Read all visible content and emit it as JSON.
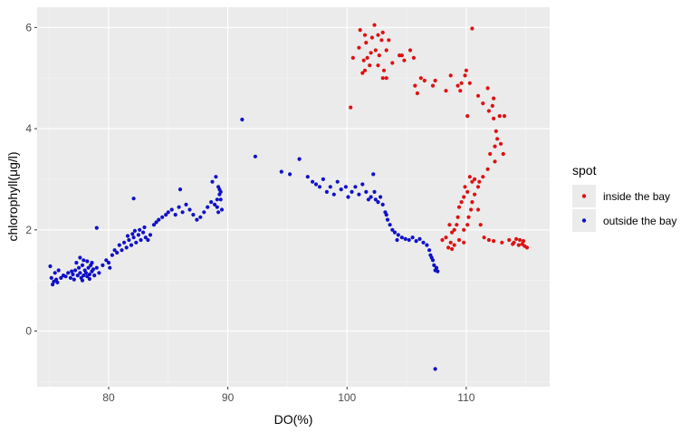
{
  "chart_data": {
    "type": "scatter",
    "xlabel": "DO(%)",
    "ylabel": "chlorophyll(μg/l)",
    "xlim": [
      74,
      117
    ],
    "ylim": [
      -1.1,
      6.4
    ],
    "x_ticks": [
      80,
      90,
      100,
      110
    ],
    "y_ticks": [
      0,
      2,
      4,
      6
    ],
    "grid": true,
    "legend": {
      "title": "spot",
      "placement": "right"
    },
    "colors": {
      "panel": "#ebebeb",
      "grid_major": "#ffffff",
      "grid_minor": "#f5f5f5",
      "inside": "#dd1111",
      "outside": "#1010c8"
    },
    "series": [
      {
        "name": "inside the bay",
        "color": "#dd1111",
        "points": [
          [
            101.1,
            5.95
          ],
          [
            101.5,
            5.85
          ],
          [
            102.3,
            6.05
          ],
          [
            101.6,
            5.7
          ],
          [
            102.1,
            5.8
          ],
          [
            102.6,
            5.85
          ],
          [
            102.9,
            5.75
          ],
          [
            103.0,
            5.9
          ],
          [
            103.5,
            5.75
          ],
          [
            102.4,
            5.55
          ],
          [
            102.0,
            5.5
          ],
          [
            101.7,
            5.4
          ],
          [
            102.7,
            5.45
          ],
          [
            103.3,
            5.55
          ],
          [
            101.4,
            5.35
          ],
          [
            101.9,
            5.25
          ],
          [
            101.5,
            5.15
          ],
          [
            101.3,
            5.1
          ],
          [
            102.6,
            5.25
          ],
          [
            103.1,
            5.15
          ],
          [
            103.0,
            5.0
          ],
          [
            103.3,
            5.0
          ],
          [
            104.4,
            5.45
          ],
          [
            104.8,
            5.35
          ],
          [
            105.3,
            5.55
          ],
          [
            105.6,
            5.4
          ],
          [
            104.6,
            5.45
          ],
          [
            100.5,
            5.4
          ],
          [
            100.3,
            4.42
          ],
          [
            105.7,
            4.85
          ],
          [
            105.9,
            4.7
          ],
          [
            106.2,
            5.0
          ],
          [
            106.5,
            4.95
          ],
          [
            107.4,
            4.95
          ],
          [
            107.2,
            4.85
          ],
          [
            108.7,
            5.05
          ],
          [
            108.3,
            4.75
          ],
          [
            109.3,
            4.85
          ],
          [
            109.6,
            4.9
          ],
          [
            109.5,
            4.75
          ],
          [
            109.9,
            5.05
          ],
          [
            110.0,
            5.15
          ],
          [
            110.3,
            4.9
          ],
          [
            110.5,
            5.98
          ],
          [
            111.0,
            4.65
          ],
          [
            111.4,
            4.5
          ],
          [
            111.8,
            4.8
          ],
          [
            112.3,
            4.6
          ],
          [
            112.2,
            4.45
          ],
          [
            111.9,
            4.35
          ],
          [
            112.3,
            4.2
          ],
          [
            112.8,
            4.25
          ],
          [
            113.2,
            4.25
          ],
          [
            110.1,
            4.25
          ],
          [
            112.5,
            3.95
          ],
          [
            112.6,
            3.8
          ],
          [
            112.9,
            3.7
          ],
          [
            112.4,
            3.65
          ],
          [
            113.1,
            3.5
          ],
          [
            112.0,
            3.5
          ],
          [
            112.4,
            3.35
          ],
          [
            111.8,
            3.2
          ],
          [
            111.4,
            3.05
          ],
          [
            111.1,
            2.95
          ],
          [
            111.0,
            2.85
          ],
          [
            110.7,
            2.7
          ],
          [
            110.5,
            2.55
          ],
          [
            110.4,
            2.4
          ],
          [
            110.2,
            2.25
          ],
          [
            110.1,
            2.1
          ],
          [
            109.8,
            2.0
          ],
          [
            110.3,
            3.05
          ],
          [
            110.7,
            3.0
          ],
          [
            110.5,
            2.95
          ],
          [
            109.9,
            2.85
          ],
          [
            110.1,
            2.75
          ],
          [
            109.8,
            2.65
          ],
          [
            109.6,
            2.55
          ],
          [
            109.4,
            2.45
          ],
          [
            109.3,
            2.25
          ],
          [
            109.2,
            2.1
          ],
          [
            109.0,
            2.0
          ],
          [
            108.8,
            1.95
          ],
          [
            108.6,
            2.1
          ],
          [
            108.3,
            1.85
          ],
          [
            108.0,
            1.8
          ],
          [
            108.7,
            1.75
          ],
          [
            109.0,
            1.7
          ],
          [
            109.4,
            1.8
          ],
          [
            109.8,
            1.75
          ],
          [
            108.5,
            1.65
          ],
          [
            108.8,
            1.62
          ],
          [
            111.0,
            2.4
          ],
          [
            111.2,
            2.1
          ],
          [
            111.5,
            1.85
          ],
          [
            111.9,
            1.8
          ],
          [
            112.3,
            1.78
          ],
          [
            113.0,
            1.75
          ],
          [
            113.6,
            1.8
          ],
          [
            114.0,
            1.75
          ],
          [
            114.2,
            1.82
          ],
          [
            114.5,
            1.8
          ],
          [
            114.7,
            1.72
          ],
          [
            114.9,
            1.68
          ],
          [
            115.1,
            1.65
          ],
          [
            113.9,
            1.72
          ],
          [
            114.4,
            1.7
          ],
          [
            114.8,
            1.78
          ],
          [
            101.0,
            5.6
          ],
          [
            103.8,
            5.3
          ]
        ]
      },
      {
        "name": "outside the bay",
        "color": "#1010c8",
        "points": [
          [
            75.1,
            1.28
          ],
          [
            75.3,
            0.92
          ],
          [
            75.4,
            0.98
          ],
          [
            75.6,
            1.02
          ],
          [
            75.2,
            1.05
          ],
          [
            75.5,
            1.15
          ],
          [
            75.8,
            1.2
          ],
          [
            75.7,
            0.96
          ],
          [
            76.0,
            1.05
          ],
          [
            76.2,
            1.1
          ],
          [
            76.4,
            1.08
          ],
          [
            76.6,
            1.15
          ],
          [
            76.8,
            1.05
          ],
          [
            77.0,
            1.12
          ],
          [
            77.2,
            1.2
          ],
          [
            77.4,
            1.1
          ],
          [
            77.5,
            1.25
          ],
          [
            77.6,
            1.15
          ],
          [
            77.7,
            1.05
          ],
          [
            77.8,
            1.3
          ],
          [
            77.9,
            1.1
          ],
          [
            78.0,
            1.2
          ],
          [
            78.1,
            1.15
          ],
          [
            78.2,
            1.08
          ],
          [
            78.3,
            1.25
          ],
          [
            78.4,
            1.12
          ],
          [
            78.5,
            1.3
          ],
          [
            78.6,
            1.18
          ],
          [
            78.7,
            1.22
          ],
          [
            78.8,
            1.1
          ],
          [
            77.3,
            1.35
          ],
          [
            77.6,
            1.45
          ],
          [
            77.9,
            1.4
          ],
          [
            78.2,
            1.38
          ],
          [
            78.6,
            1.35
          ],
          [
            76.9,
            1.18
          ],
          [
            77.1,
            1.02
          ],
          [
            77.8,
            1.0
          ],
          [
            78.4,
            1.03
          ],
          [
            79.0,
            1.25
          ],
          [
            79.2,
            1.15
          ],
          [
            79.5,
            1.3
          ],
          [
            79.8,
            1.4
          ],
          [
            80.0,
            1.35
          ],
          [
            80.1,
            1.25
          ],
          [
            80.3,
            1.5
          ],
          [
            80.5,
            1.6
          ],
          [
            80.7,
            1.55
          ],
          [
            80.9,
            1.7
          ],
          [
            81.1,
            1.6
          ],
          [
            81.3,
            1.75
          ],
          [
            81.5,
            1.65
          ],
          [
            81.7,
            1.8
          ],
          [
            81.9,
            1.7
          ],
          [
            82.1,
            1.85
          ],
          [
            82.3,
            1.75
          ],
          [
            82.5,
            1.9
          ],
          [
            82.7,
            1.8
          ],
          [
            82.9,
            1.95
          ],
          [
            83.1,
            1.85
          ],
          [
            83.3,
            1.8
          ],
          [
            83.5,
            1.9
          ],
          [
            81.6,
            1.88
          ],
          [
            82.0,
            1.92
          ],
          [
            82.2,
            1.98
          ],
          [
            82.6,
            2.0
          ],
          [
            83.0,
            2.05
          ],
          [
            79.0,
            2.04
          ],
          [
            82.1,
            2.62
          ],
          [
            83.8,
            2.1
          ],
          [
            84.0,
            2.15
          ],
          [
            84.2,
            2.2
          ],
          [
            84.5,
            2.25
          ],
          [
            84.8,
            2.3
          ],
          [
            85.0,
            2.35
          ],
          [
            85.3,
            2.4
          ],
          [
            85.6,
            2.3
          ],
          [
            85.9,
            2.45
          ],
          [
            86.2,
            2.35
          ],
          [
            86.5,
            2.5
          ],
          [
            86.8,
            2.4
          ],
          [
            87.1,
            2.3
          ],
          [
            87.4,
            2.2
          ],
          [
            87.7,
            2.25
          ],
          [
            88.0,
            2.35
          ],
          [
            88.3,
            2.45
          ],
          [
            88.6,
            2.55
          ],
          [
            88.9,
            2.5
          ],
          [
            89.1,
            2.6
          ],
          [
            89.3,
            2.7
          ],
          [
            86.0,
            2.8
          ],
          [
            88.7,
            2.95
          ],
          [
            89.0,
            3.05
          ],
          [
            89.2,
            2.85
          ],
          [
            89.4,
            2.6
          ],
          [
            89.5,
            2.4
          ],
          [
            89.2,
            2.35
          ],
          [
            89.4,
            2.75
          ],
          [
            89.1,
            2.45
          ],
          [
            89.3,
            2.8
          ],
          [
            91.2,
            4.18
          ],
          [
            92.3,
            3.45
          ],
          [
            94.5,
            3.15
          ],
          [
            95.2,
            3.1
          ],
          [
            96.0,
            3.4
          ],
          [
            96.7,
            3.05
          ],
          [
            97.1,
            2.95
          ],
          [
            97.4,
            2.9
          ],
          [
            97.7,
            2.85
          ],
          [
            98.0,
            3.0
          ],
          [
            98.3,
            2.75
          ],
          [
            98.6,
            2.85
          ],
          [
            98.9,
            2.7
          ],
          [
            99.2,
            2.95
          ],
          [
            99.5,
            2.8
          ],
          [
            99.9,
            2.85
          ],
          [
            100.1,
            2.65
          ],
          [
            100.4,
            2.75
          ],
          [
            100.7,
            2.85
          ],
          [
            101.0,
            2.7
          ],
          [
            101.3,
            2.9
          ],
          [
            101.6,
            2.75
          ],
          [
            102.0,
            2.65
          ],
          [
            102.2,
            3.1
          ],
          [
            102.4,
            2.6
          ],
          [
            102.6,
            2.55
          ],
          [
            102.8,
            2.65
          ],
          [
            103.0,
            2.5
          ],
          [
            103.2,
            2.35
          ],
          [
            103.4,
            2.2
          ],
          [
            103.6,
            2.1
          ],
          [
            103.8,
            2.0
          ],
          [
            104.0,
            1.95
          ],
          [
            104.3,
            1.9
          ],
          [
            104.6,
            1.85
          ],
          [
            104.9,
            1.82
          ],
          [
            105.2,
            1.8
          ],
          [
            105.5,
            1.85
          ],
          [
            105.8,
            1.78
          ],
          [
            106.1,
            1.82
          ],
          [
            106.4,
            1.75
          ],
          [
            106.7,
            1.7
          ],
          [
            106.9,
            1.6
          ],
          [
            107.0,
            1.5
          ],
          [
            107.1,
            1.45
          ],
          [
            107.2,
            1.4
          ],
          [
            107.3,
            1.3
          ],
          [
            107.4,
            1.2
          ],
          [
            107.5,
            1.25
          ],
          [
            107.6,
            1.18
          ],
          [
            107.4,
            -0.75
          ],
          [
            102.3,
            2.75
          ],
          [
            101.8,
            2.6
          ],
          [
            103.3,
            2.3
          ],
          [
            104.2,
            1.8
          ]
        ]
      }
    ]
  }
}
